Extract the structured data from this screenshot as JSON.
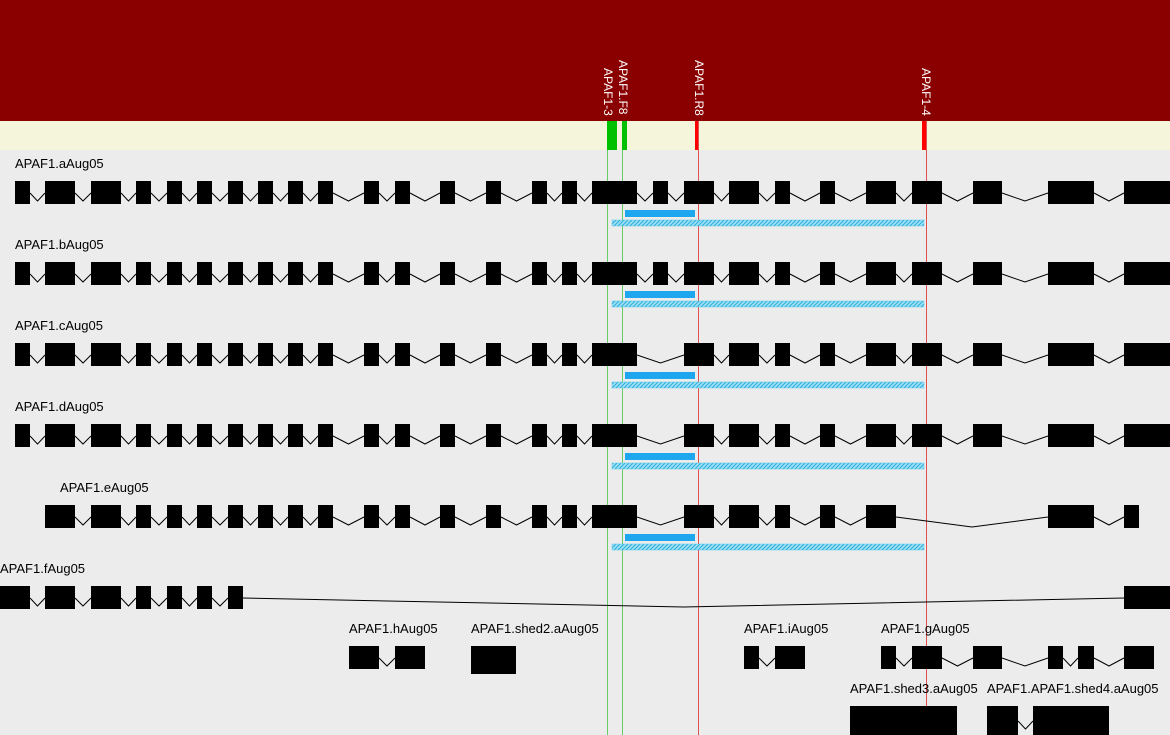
{
  "colors": {
    "header": "#8a0000",
    "primer_band": "#f5f5dc",
    "background": "#ececec",
    "exon": "#000000",
    "intron": "#000000",
    "forward_primer": "#00c000",
    "reverse_primer": "#ff0000",
    "forward_line": "#66cc66",
    "reverse_line": "#e05050",
    "amplicon": "#1ea6ee",
    "amplicon_hatch": "#58c8e8"
  },
  "primers": [
    {
      "label": "APAF1-3",
      "kind": "forward"
    },
    {
      "label": "APAF1.F8",
      "kind": "forward"
    },
    {
      "label": "APAF1.R8",
      "kind": "reverse"
    },
    {
      "label": "APAF1-4",
      "kind": "reverse"
    }
  ],
  "transcripts": [
    {
      "name": "APAF1.aAug05"
    },
    {
      "name": "APAF1.bAug05"
    },
    {
      "name": "APAF1.cAug05"
    },
    {
      "name": "APAF1.dAug05"
    },
    {
      "name": "APAF1.eAug05"
    },
    {
      "name": "APAF1.fAug05"
    },
    {
      "name": "APAF1.hAug05"
    },
    {
      "name": "APAF1.shed2.aAug05"
    },
    {
      "name": "APAF1.iAug05"
    },
    {
      "name": "APAF1.gAug05"
    },
    {
      "name": "APAF1.shed3.aAug05"
    },
    {
      "name": "APAF1.APAF1.shed4.aAug05"
    }
  ]
}
